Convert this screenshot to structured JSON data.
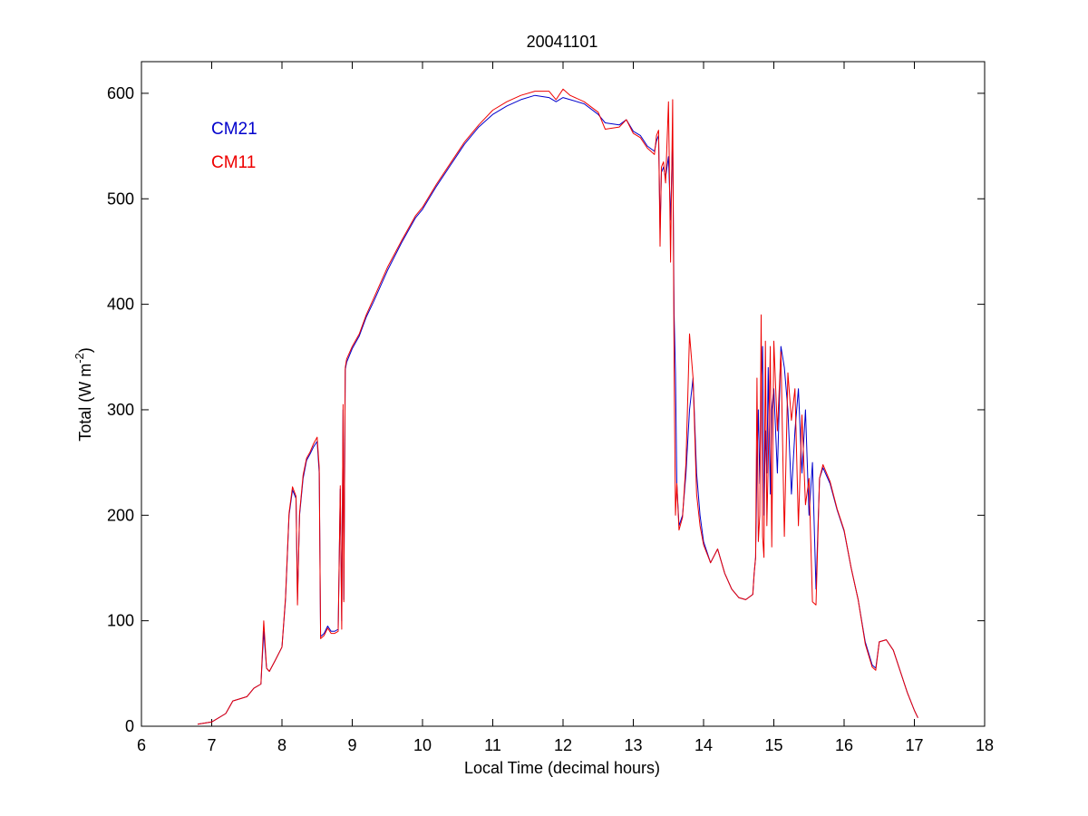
{
  "chart_data": {
    "type": "line",
    "title": "20041101",
    "xlabel": "Local Time (decimal hours)",
    "ylabel_prefix": "Total (W m",
    "ylabel_superscript": "-2",
    "ylabel_suffix": ")",
    "xlim": [
      6,
      18
    ],
    "ylim": [
      0,
      630
    ],
    "xticks": [
      "6",
      "7",
      "8",
      "9",
      "10",
      "11",
      "12",
      "13",
      "14",
      "15",
      "16",
      "17",
      "18"
    ],
    "yticks": [
      "0",
      "100",
      "200",
      "300",
      "400",
      "500",
      "600"
    ],
    "grid": false,
    "legend_placement": "top-left",
    "colors": {
      "CM21": "#0000cc",
      "CM11": "#ee0000"
    },
    "series": [
      {
        "name": "CM21",
        "x": [
          6.8,
          7.0,
          7.2,
          7.3,
          7.5,
          7.6,
          7.7,
          7.74,
          7.78,
          7.82,
          7.9,
          8.0,
          8.05,
          8.1,
          8.15,
          8.2,
          8.22,
          8.25,
          8.3,
          8.35,
          8.4,
          8.45,
          8.5,
          8.53,
          8.55,
          8.6,
          8.65,
          8.7,
          8.75,
          8.8,
          8.83,
          8.85,
          8.87,
          8.88,
          8.9,
          8.92,
          9.0,
          9.1,
          9.2,
          9.3,
          9.5,
          9.7,
          9.9,
          10.0,
          10.2,
          10.4,
          10.6,
          10.8,
          11.0,
          11.2,
          11.4,
          11.6,
          11.8,
          11.9,
          12.0,
          12.1,
          12.3,
          12.5,
          12.6,
          12.8,
          12.9,
          13.0,
          13.1,
          13.2,
          13.3,
          13.33,
          13.36,
          13.38,
          13.4,
          13.43,
          13.46,
          13.5,
          13.53,
          13.56,
          13.58,
          13.6,
          13.62,
          13.65,
          13.7,
          13.75,
          13.8,
          13.85,
          13.9,
          13.95,
          14.0,
          14.1,
          14.2,
          14.3,
          14.4,
          14.5,
          14.6,
          14.7,
          14.72,
          14.74,
          14.76,
          14.78,
          14.8,
          14.82,
          14.84,
          14.86,
          14.88,
          14.9,
          14.92,
          14.95,
          14.97,
          15.0,
          15.05,
          15.1,
          15.15,
          15.2,
          15.25,
          15.3,
          15.35,
          15.4,
          15.45,
          15.5,
          15.55,
          15.6,
          15.65,
          15.7,
          15.8,
          15.9,
          16.0,
          16.1,
          16.2,
          16.3,
          16.4,
          16.45,
          16.5,
          16.6,
          16.7,
          16.8,
          16.9,
          17.0,
          17.05
        ],
        "y": [
          2,
          4,
          12,
          24,
          28,
          36,
          40,
          90,
          55,
          52,
          62,
          75,
          120,
          200,
          224,
          216,
          120,
          200,
          235,
          252,
          258,
          265,
          270,
          240,
          85,
          88,
          95,
          90,
          90,
          92,
          225,
          100,
          300,
          120,
          338,
          345,
          358,
          370,
          388,
          402,
          432,
          458,
          482,
          490,
          512,
          532,
          552,
          568,
          580,
          588,
          594,
          598,
          596,
          592,
          596,
          594,
          590,
          580,
          572,
          570,
          575,
          564,
          560,
          550,
          545,
          555,
          560,
          470,
          525,
          530,
          520,
          540,
          480,
          560,
          390,
          335,
          230,
          190,
          200,
          240,
          300,
          330,
          240,
          200,
          175,
          155,
          168,
          145,
          130,
          122,
          120,
          125,
          145,
          160,
          250,
          300,
          230,
          320,
          360,
          200,
          280,
          240,
          340,
          220,
          300,
          320,
          240,
          360,
          340,
          300,
          220,
          280,
          320,
          240,
          300,
          200,
          250,
          130,
          235,
          245,
          230,
          205,
          185,
          150,
          120,
          80,
          58,
          55,
          80,
          82,
          72,
          52,
          32,
          15,
          8
        ]
      },
      {
        "name": "CM11",
        "x": [
          6.8,
          7.0,
          7.2,
          7.3,
          7.5,
          7.6,
          7.7,
          7.74,
          7.78,
          7.82,
          7.9,
          8.0,
          8.05,
          8.1,
          8.15,
          8.2,
          8.22,
          8.25,
          8.3,
          8.35,
          8.4,
          8.45,
          8.5,
          8.53,
          8.55,
          8.6,
          8.65,
          8.7,
          8.75,
          8.8,
          8.83,
          8.85,
          8.87,
          8.88,
          8.9,
          8.92,
          9.0,
          9.1,
          9.2,
          9.3,
          9.5,
          9.7,
          9.9,
          10.0,
          10.2,
          10.4,
          10.6,
          10.8,
          11.0,
          11.2,
          11.4,
          11.6,
          11.8,
          11.9,
          12.0,
          12.1,
          12.3,
          12.5,
          12.6,
          12.8,
          12.9,
          13.0,
          13.1,
          13.2,
          13.3,
          13.33,
          13.36,
          13.38,
          13.4,
          13.43,
          13.46,
          13.5,
          13.53,
          13.56,
          13.58,
          13.6,
          13.62,
          13.65,
          13.7,
          13.75,
          13.8,
          13.85,
          13.9,
          13.95,
          14.0,
          14.1,
          14.2,
          14.3,
          14.4,
          14.5,
          14.6,
          14.7,
          14.72,
          14.74,
          14.76,
          14.78,
          14.8,
          14.82,
          14.84,
          14.86,
          14.88,
          14.9,
          14.92,
          14.95,
          14.97,
          15.0,
          15.05,
          15.1,
          15.15,
          15.2,
          15.25,
          15.3,
          15.35,
          15.4,
          15.45,
          15.5,
          15.55,
          15.6,
          15.65,
          15.7,
          15.8,
          15.9,
          16.0,
          16.1,
          16.2,
          16.3,
          16.4,
          16.45,
          16.5,
          16.6,
          16.7,
          16.8,
          16.9,
          17.0,
          17.05
        ],
        "y": [
          2,
          4,
          12,
          24,
          28,
          36,
          40,
          100,
          55,
          52,
          62,
          75,
          122,
          202,
          227,
          218,
          115,
          202,
          238,
          254,
          260,
          268,
          274,
          245,
          83,
          86,
          93,
          88,
          88,
          90,
          228,
          92,
          305,
          118,
          340,
          348,
          360,
          372,
          390,
          405,
          435,
          460,
          484,
          492,
          514,
          534,
          554,
          570,
          584,
          592,
          598,
          602,
          602,
          594,
          604,
          598,
          592,
          582,
          566,
          568,
          575,
          562,
          558,
          548,
          542,
          560,
          565,
          455,
          530,
          535,
          515,
          592,
          440,
          594,
          340,
          200,
          230,
          186,
          198,
          250,
          372,
          330,
          220,
          190,
          172,
          155,
          168,
          145,
          130,
          122,
          120,
          125,
          145,
          160,
          330,
          175,
          200,
          390,
          180,
          160,
          365,
          190,
          250,
          360,
          170,
          365,
          280,
          355,
          180,
          335,
          290,
          320,
          190,
          295,
          210,
          235,
          118,
          115,
          235,
          248,
          232,
          206,
          186,
          150,
          120,
          78,
          56,
          53,
          80,
          82,
          72,
          52,
          32,
          15,
          8
        ]
      }
    ]
  }
}
